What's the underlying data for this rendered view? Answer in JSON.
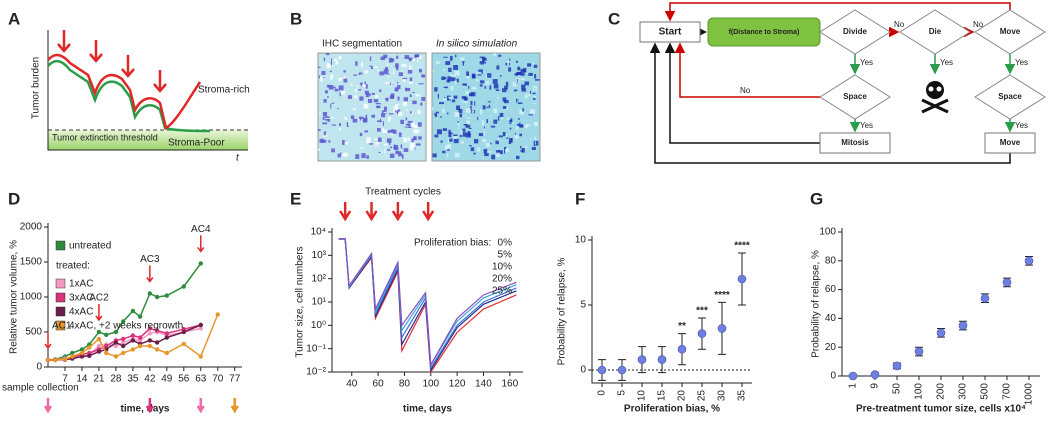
{
  "figure": {
    "panel_labels": [
      "A",
      "B",
      "C",
      "D",
      "E",
      "F",
      "G"
    ]
  },
  "panel_a": {
    "y_label": "Tumor burden",
    "x_label": "t",
    "curve_labels": [
      "Stroma-rich",
      "Stroma-Poor"
    ],
    "threshold_label": "Tumor extinction threshold"
  },
  "panel_b": {
    "titles": [
      "IHC segmentation",
      "In silico simulation"
    ]
  },
  "panel_c": {
    "nodes": [
      "Start",
      "f(Distance to Stroma)",
      "Divide",
      "Die",
      "Move",
      "Space",
      "Space",
      "Mitosis",
      "Move"
    ],
    "edge_labels": [
      "No",
      "No",
      "Yes",
      "Yes",
      "Yes",
      "No",
      "Yes",
      "Yes"
    ]
  },
  "chart_data": [
    {
      "type": "line",
      "x_label": "time, days",
      "y_label": "Relative tumor volume, %",
      "legend_heading": "treated:",
      "x": [
        0,
        3,
        7,
        10,
        14,
        17,
        21,
        24,
        28,
        31,
        35,
        38,
        42,
        45,
        49,
        56,
        63,
        70
      ],
      "series": [
        {
          "name": "untreated",
          "color": "#2e8b3e",
          "values": [
            100,
            110,
            150,
            200,
            250,
            320,
            500,
            460,
            500,
            650,
            800,
            720,
            1050,
            1000,
            1020,
            1150,
            1480,
            null
          ]
        },
        {
          "name": "1xAC",
          "color": "#f49ac1",
          "values": [
            100,
            105,
            120,
            130,
            150,
            170,
            300,
            320,
            300,
            350,
            400,
            380,
            480,
            500,
            450,
            500,
            550,
            null
          ]
        },
        {
          "name": "3xAC",
          "color": "#d6337a",
          "values": [
            100,
            100,
            110,
            140,
            180,
            200,
            250,
            300,
            380,
            400,
            450,
            420,
            550,
            520,
            480,
            540,
            600,
            null
          ]
        },
        {
          "name": "4xAC",
          "color": "#6b1f4a",
          "values": [
            100,
            100,
            105,
            120,
            150,
            160,
            220,
            250,
            350,
            300,
            380,
            330,
            380,
            350,
            420,
            500,
            600,
            null
          ]
        },
        {
          "name": "4xAC, +2 weeks regrowth",
          "color": "#e8962a",
          "values": [
            100,
            100,
            110,
            150,
            200,
            280,
            400,
            200,
            150,
            200,
            250,
            300,
            300,
            250,
            200,
            330,
            150,
            750
          ]
        }
      ],
      "xlim": [
        0,
        80
      ],
      "xticks": [
        7,
        14,
        21,
        28,
        35,
        42,
        49,
        56,
        63,
        70,
        77
      ],
      "ylim": [
        0,
        2000
      ],
      "yticks": [
        0,
        500,
        1000,
        1500,
        2000
      ],
      "treatments": [
        {
          "label": "AC1",
          "day": 0
        },
        {
          "label": "AC2",
          "day": 21
        },
        {
          "label": "AC3",
          "day": 42
        },
        {
          "label": "AC4",
          "day": 63
        }
      ],
      "sample_collection": {
        "label": "sample collection",
        "days": [
          0,
          42,
          63,
          77
        ],
        "colors": [
          "#f06aa8",
          "#d6337a",
          "#f06aa8",
          "#e8962a"
        ]
      }
    },
    {
      "type": "line",
      "log_scale": true,
      "x_label": "time, days",
      "y_label": "Tumor size, cell numbers",
      "legend_title": "Proliferation bias:",
      "x": [
        30,
        35,
        38,
        55,
        58,
        75,
        78,
        96,
        100,
        120,
        140,
        165
      ],
      "series": [
        {
          "name": "0%",
          "color": "#e03030",
          "values": [
            5000,
            5000,
            40,
            800,
            2,
            200,
            0.08,
            8,
            0.01,
            0.5,
            5,
            20
          ]
        },
        {
          "name": "5%",
          "color": "#2a2a8a",
          "values": [
            5000,
            5000,
            40,
            900,
            2.5,
            250,
            0.15,
            10,
            0.012,
            0.8,
            8,
            30
          ]
        },
        {
          "name": "10%",
          "color": "#3a6fd8",
          "values": [
            5000,
            5000,
            45,
            1000,
            3,
            350,
            0.3,
            15,
            0.015,
            1,
            10,
            40
          ]
        },
        {
          "name": "20%",
          "color": "#35a8d8",
          "values": [
            5000,
            5000,
            45,
            1100,
            4,
            450,
            0.6,
            20,
            0.02,
            1.5,
            15,
            55
          ]
        },
        {
          "name": "25%",
          "color": "#8a4fc0",
          "values": [
            5000,
            5000,
            50,
            1200,
            5,
            500,
            1,
            25,
            0.02,
            2,
            20,
            70
          ]
        }
      ],
      "xlim": [
        25,
        170
      ],
      "xticks": [
        40,
        60,
        80,
        100,
        120,
        140,
        160
      ],
      "ylim": [
        0.01,
        10000
      ],
      "yticks": [
        {
          "value": 10000,
          "label": "10⁴"
        },
        {
          "value": 1000,
          "label": "10³"
        },
        {
          "value": 100,
          "label": "10²"
        },
        {
          "value": 10,
          "label": "10¹"
        },
        {
          "value": 1,
          "label": "10⁰"
        },
        {
          "value": 0.1,
          "label": "10⁻¹"
        },
        {
          "value": 0.01,
          "label": "10⁻²"
        }
      ],
      "treatment_cycles": {
        "label": "Treatment cycles",
        "times": [
          35,
          55,
          75,
          98
        ]
      }
    },
    {
      "type": "errorbar",
      "x_label": "Proliferation bias, %",
      "y_label": "Probability of relapse, %",
      "categories": [
        "0",
        "5",
        "10",
        "15",
        "20",
        "25",
        "30",
        "35"
      ],
      "values": [
        0,
        0,
        0.8,
        0.8,
        1.6,
        2.8,
        3.2,
        7
      ],
      "errors": [
        0.8,
        0.8,
        1,
        1,
        1.2,
        1.2,
        2,
        2
      ],
      "color": "#6f7fe0",
      "ylim": [
        -1,
        10
      ],
      "yticks": [
        0,
        5,
        10
      ],
      "reference_line": 0,
      "annotations": [
        {
          "x": "20",
          "text": "**"
        },
        {
          "x": "25",
          "text": "***"
        },
        {
          "x": "30",
          "text": "****"
        },
        {
          "x": "35",
          "text": "****"
        }
      ]
    },
    {
      "type": "errorbar",
      "x_label": "Pre-treatment tumor size, cells x10⁴",
      "y_label": "Probability of relapse, %",
      "categories": [
        "1",
        "9",
        "50",
        "100",
        "200",
        "300",
        "500",
        "700",
        "1000"
      ],
      "values": [
        0,
        1,
        7,
        17,
        30,
        35,
        54,
        65,
        80
      ],
      "errors": [
        1,
        1,
        2,
        3,
        3,
        3,
        3,
        3,
        3
      ],
      "color": "#6f7fe0",
      "ylim": [
        0,
        100
      ],
      "yticks": [
        0,
        20,
        40,
        60,
        80,
        100
      ]
    }
  ]
}
